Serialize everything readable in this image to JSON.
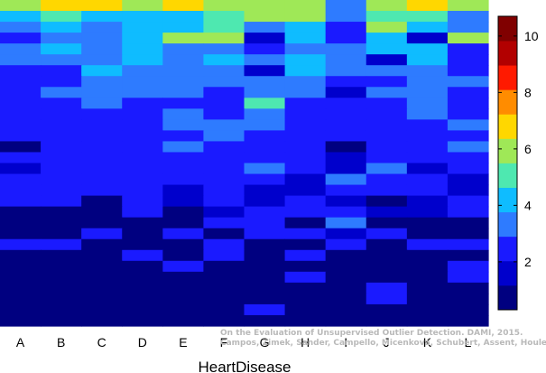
{
  "chart_data": {
    "type": "heatmap",
    "xlabel": "HeartDisease",
    "categories": [
      "A",
      "B",
      "C",
      "D",
      "E",
      "F",
      "G",
      "H",
      "I",
      "J",
      "K",
      "L"
    ],
    "n_rows": 30,
    "colorbar": {
      "range": [
        0.3,
        10.7
      ],
      "ticks": [
        2,
        4,
        6,
        8,
        10
      ],
      "stops": [
        "#000080",
        "#0000cc",
        "#1a1aff",
        "#2e7bff",
        "#0fbcff",
        "#4ee8b0",
        "#9fe857",
        "#ffd700",
        "#ff8c00",
        "#ff1a00",
        "#b20000",
        "#800000"
      ]
    },
    "values": [
      [
        5.6,
        6.4,
        6.4,
        5.6,
        6.4,
        5.6,
        6.3,
        6.3,
        3.3,
        5.6,
        6.4,
        6.2
      ],
      [
        4.4,
        5.2,
        4.4,
        4.4,
        4.5,
        5.1,
        5.6,
        5.7,
        3.3,
        5.1,
        5.4,
        3.4
      ],
      [
        3.5,
        4.4,
        3.5,
        4.1,
        4.5,
        4.7,
        3.5,
        4.5,
        2.1,
        5.6,
        4.5,
        3.3
      ],
      [
        2.1,
        3.4,
        3.2,
        4.4,
        5.6,
        5.6,
        1.7,
        4.5,
        2.4,
        4.4,
        1.8,
        5.5
      ],
      [
        3.3,
        4.4,
        3.2,
        4.1,
        3.4,
        3.4,
        2.1,
        3.4,
        3.2,
        4.3,
        4.5,
        2.2
      ],
      [
        3.1,
        3.1,
        3.4,
        4.4,
        3.3,
        4.1,
        3.3,
        4.4,
        3.1,
        1.5,
        4.4,
        2.1
      ],
      [
        2.5,
        2.2,
        4.6,
        3.4,
        3.3,
        3.1,
        1.8,
        4.3,
        3.2,
        3.3,
        3.3,
        2.2
      ],
      [
        2.2,
        2.2,
        3.2,
        3.3,
        3.2,
        3.2,
        3.4,
        3.2,
        2.4,
        2.4,
        3.1,
        3.1
      ],
      [
        2.3,
        3.1,
        3.1,
        3.1,
        3.2,
        2.2,
        3.2,
        3.2,
        1.2,
        3.1,
        3.3,
        2.4
      ],
      [
        2.3,
        2.2,
        3.4,
        2.3,
        2.2,
        2.2,
        4.7,
        2.2,
        2.2,
        2.2,
        3.4,
        2.2
      ],
      [
        2.3,
        2.2,
        2.4,
        2.4,
        3.3,
        2.3,
        3.3,
        2.3,
        2.2,
        2.2,
        3.3,
        2.3
      ],
      [
        2.2,
        2.3,
        2.4,
        2.2,
        3.4,
        3.3,
        3.4,
        2.3,
        2.4,
        2.4,
        2.2,
        3.3
      ],
      [
        2.2,
        2.3,
        2.3,
        2.2,
        2.3,
        3.2,
        2.3,
        2.2,
        2.2,
        2.2,
        2.3,
        2.2
      ],
      [
        1.1,
        2.2,
        2.3,
        2.2,
        3.3,
        2.2,
        2.2,
        2.2,
        1.1,
        2.2,
        2.2,
        3.4
      ],
      [
        2.2,
        2.2,
        2.2,
        2.2,
        2.2,
        2.3,
        2.2,
        2.2,
        1.2,
        2.2,
        2.2,
        2.2
      ],
      [
        1.2,
        2.2,
        2.2,
        2.2,
        2.3,
        2.2,
        3.3,
        2.2,
        1.3,
        3.3,
        1.3,
        2.4
      ],
      [
        2.2,
        2.3,
        2.2,
        2.3,
        2.2,
        2.2,
        2.2,
        1.2,
        3.4,
        2.2,
        2.2,
        1.2
      ],
      [
        2.2,
        2.2,
        2.2,
        2.2,
        1.2,
        2.3,
        1.2,
        1.2,
        2.2,
        2.2,
        2.2,
        1.2
      ],
      [
        2.2,
        2.2,
        1.1,
        2.2,
        1.2,
        2.2,
        1.2,
        2.2,
        1.2,
        1.1,
        1.2,
        2.2
      ],
      [
        1.1,
        1.1,
        1.1,
        2.2,
        1.1,
        1.2,
        2.2,
        2.2,
        2.2,
        1.2,
        1.2,
        2.2
      ],
      [
        1.1,
        1.1,
        1.1,
        1.1,
        1.1,
        2.2,
        2.2,
        1.1,
        3.3,
        1.1,
        1.1,
        1.1
      ],
      [
        1.1,
        1.1,
        2.2,
        1.1,
        2.2,
        1.1,
        2.2,
        2.2,
        1.2,
        2.2,
        1.1,
        1.1
      ],
      [
        2.2,
        2.2,
        1.1,
        1.1,
        1.1,
        2.2,
        1.1,
        1.1,
        2.2,
        1.1,
        2.2,
        2.2
      ],
      [
        1.1,
        1.1,
        1.1,
        2.2,
        1.1,
        2.2,
        1.1,
        2.2,
        1.1,
        1.1,
        1.1,
        1.1
      ],
      [
        1.1,
        1.1,
        1.1,
        1.1,
        2.2,
        1.1,
        1.1,
        1.1,
        1.1,
        1.1,
        1.1,
        2.2
      ],
      [
        1.1,
        1.1,
        1.1,
        1.1,
        1.1,
        1.1,
        1.1,
        2.2,
        1.1,
        1.1,
        1.1,
        2.2
      ],
      [
        1.1,
        1.1,
        1.1,
        1.1,
        1.1,
        1.1,
        1.1,
        1.1,
        1.1,
        2.2,
        1.1,
        1.1
      ],
      [
        1.1,
        1.1,
        1.1,
        1.1,
        1.1,
        1.1,
        1.1,
        1.1,
        1.1,
        2.2,
        1.1,
        1.1
      ],
      [
        1.1,
        1.1,
        1.1,
        1.1,
        1.1,
        1.1,
        2.2,
        1.1,
        1.1,
        1.1,
        1.1,
        1.1
      ],
      [
        1.1,
        1.1,
        1.1,
        1.1,
        1.1,
        1.1,
        1.1,
        1.1,
        1.1,
        1.1,
        1.1,
        1.1
      ]
    ]
  },
  "watermark": {
    "line1": "On the Evaluation of Unsupervised Outlier Detection. DAMI, 2015.",
    "line2": "Campos, Zimek, Sander, Campello, Micenková, Schubert, Assent, Houle"
  }
}
